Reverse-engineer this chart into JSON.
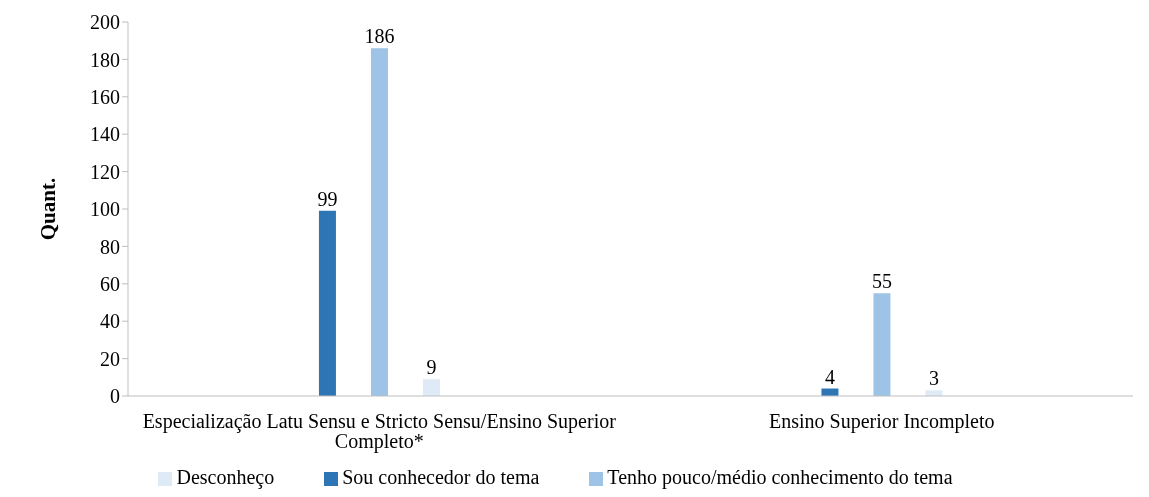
{
  "chart_data": {
    "type": "bar",
    "ylabel": "Quant.",
    "categories": [
      "Especialização Latu Sensu e Stricto Sensu/Ensino Superior Completo*",
      "Ensino Superior Incompleto"
    ],
    "series": [
      {
        "name": "Sou conhecedor do tema",
        "color": "#2e75b6",
        "values": [
          99,
          4
        ]
      },
      {
        "name": "Tenho pouco/médio conhecimento do tema",
        "color": "#9dc3e6",
        "values": [
          186,
          55
        ]
      },
      {
        "name": "Desconheço",
        "color": "#deebf7",
        "values": [
          9,
          3
        ]
      }
    ],
    "ylim": [
      0,
      200
    ],
    "yticks": [
      0,
      20,
      40,
      60,
      80,
      100,
      120,
      140,
      160,
      180,
      200
    ],
    "data_labels": true,
    "legend": "bottom",
    "grid": false
  }
}
